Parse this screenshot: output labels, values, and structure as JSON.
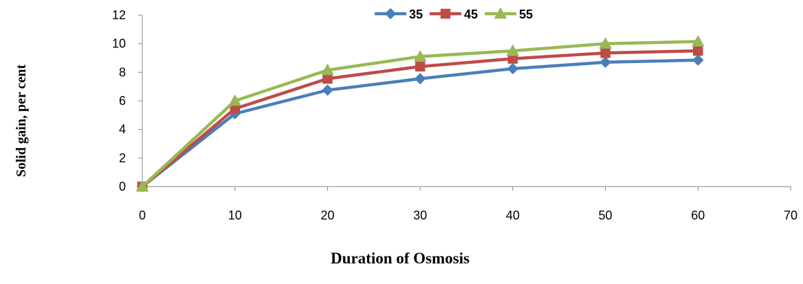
{
  "chart_data": {
    "type": "line",
    "title": "",
    "xlabel": "Duration of Osmosis",
    "ylabel": "Solid gain, per cent",
    "xlim": [
      0,
      70
    ],
    "ylim": [
      0,
      12
    ],
    "x_ticks": [
      0,
      10,
      20,
      30,
      40,
      50,
      60,
      70
    ],
    "y_ticks": [
      0,
      2,
      4,
      6,
      8,
      10,
      12
    ],
    "x": [
      0,
      10,
      20,
      30,
      40,
      50,
      60
    ],
    "grid": false,
    "legend_position": "top",
    "series": [
      {
        "name": "35",
        "color": "#4a7ebb",
        "marker": "diamond",
        "values": [
          0,
          5.1,
          6.75,
          7.55,
          8.25,
          8.7,
          8.85
        ]
      },
      {
        "name": "45",
        "color": "#be4b48",
        "marker": "square",
        "values": [
          0,
          5.45,
          7.55,
          8.4,
          8.95,
          9.35,
          9.5
        ]
      },
      {
        "name": "55",
        "color": "#98b954",
        "marker": "triangle",
        "values": [
          0,
          6.0,
          8.15,
          9.1,
          9.5,
          10.0,
          10.15
        ]
      }
    ]
  }
}
